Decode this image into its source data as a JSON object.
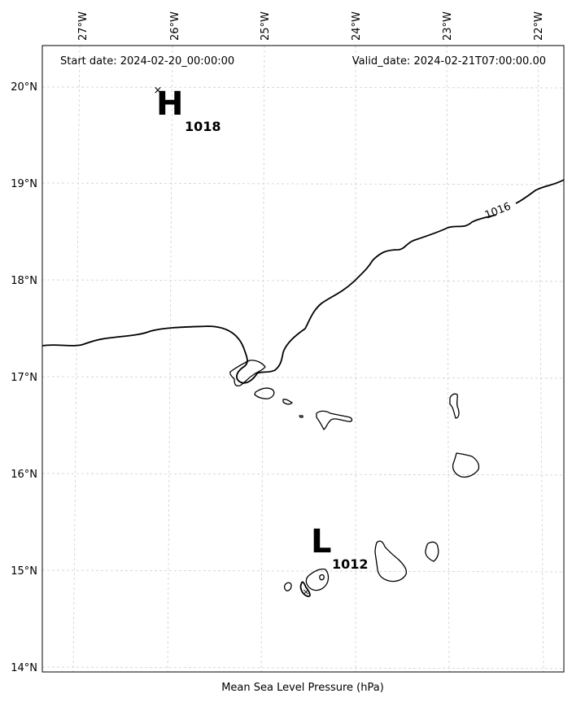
{
  "header": {
    "start_date": "Start date: 2024-02-20_00:00:00",
    "valid_date": "Valid_date: 2024-02-21T07:00:00.00"
  },
  "footer": {
    "caption": "Mean Sea Level Pressure (hPa)"
  },
  "axes": {
    "lon_ticks": [
      "27°W",
      "26°W",
      "25°W",
      "24°W",
      "23°W",
      "22°W"
    ],
    "lat_ticks": [
      "20°N",
      "19°N",
      "18°N",
      "17°N",
      "16°N",
      "15°N",
      "14°N"
    ]
  },
  "pressure_centers": [
    {
      "type": "H",
      "value": "1018"
    },
    {
      "type": "L",
      "value": "1012"
    }
  ],
  "isobars": [
    {
      "label": "1016"
    }
  ],
  "colors": {
    "background": "#ffffff",
    "lines": "#000000",
    "grid": "#cfcfcf"
  }
}
